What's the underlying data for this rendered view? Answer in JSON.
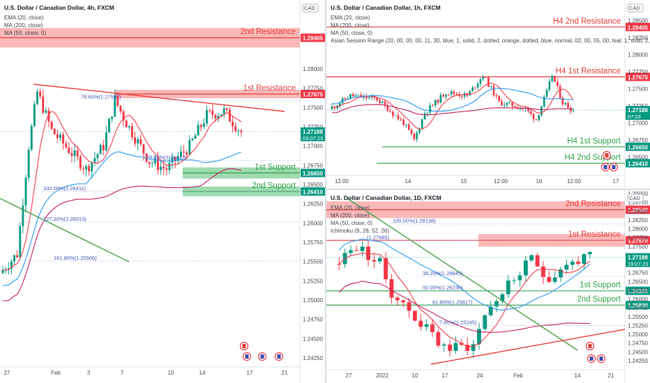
{
  "chart_data": [
    {
      "type": "candlestick",
      "title": "U.S. Dollar / Canadian Dollar, 4h, FXCM",
      "currency": "CAD",
      "indicators": [
        "EMA (20, close)",
        "MA (200, close)",
        "MA (50, close, 0)"
      ],
      "ylim": [
        1.2415,
        1.2885
      ],
      "y_ticks": [
        1.28,
        1.2775,
        1.275,
        1.2725,
        1.27,
        1.2675,
        1.265,
        1.2625,
        1.26,
        1.2575,
        1.255,
        1.2525,
        1.25,
        1.2475,
        1.245,
        1.2425
      ],
      "y_tick_labels": [
        "1.28000",
        "1.27750",
        "1.27500",
        "1.27250",
        "1.27000",
        "1.26750",
        "1.26500",
        "1.26250",
        "1.26000",
        "1.25750",
        "1.25500",
        "1.25250",
        "1.25000",
        "1.24750",
        "1.24500",
        "1.24250"
      ],
      "x_ticks": [
        "27",
        "Feb",
        "3",
        "7",
        "10",
        "14",
        "17",
        "21"
      ],
      "zones": [
        {
          "label": "2nd Resistance",
          "price": 1.28405,
          "price_label": "1.28405",
          "color": "#f23645"
        },
        {
          "label": "1st Resistance",
          "price": 1.27675,
          "price_label": "1.27675",
          "color": "#f23645"
        },
        {
          "label": "1st Support",
          "price": 1.2665,
          "price_label": "1.26650",
          "color": "#089981"
        },
        {
          "label": "2nd Support",
          "price": 1.2641,
          "price_label": "1.26410",
          "color": "#089981"
        }
      ],
      "fib_labels": [
        {
          "text": "78.60%(1.27597)",
          "price": 1.27597
        },
        {
          "text": "78.60%(1.26813)",
          "price": 1.26813
        },
        {
          "text": "100.00%(1.26411)",
          "price": 1.26411
        },
        {
          "text": "127.20%(1.26013)",
          "price": 1.26013
        },
        {
          "text": "161.80%(1.25506)",
          "price": 1.25506
        }
      ],
      "last_price": "1.27188",
      "countdown": "03:07:23"
    },
    {
      "type": "candlestick",
      "title": "U.S. Dollar / Canadian Dollar, 1h, FXCM",
      "currency": "CAD",
      "indicators": [
        "EMA (20, close)",
        "MA (200, close)",
        "MA (50, close, 0)",
        "Asian Session Range (20, 00, 00, 00, 11, 30, blue, 1, solid, 2, dotted, orange, dotted, blue, normal, 02, 00, 05, 00, teal, 1, solid, 2, dotted, t"
      ],
      "ylim": [
        1.2625,
        1.2875
      ],
      "y_ticks": [
        1.285,
        1.2825,
        1.28,
        1.2775,
        1.275,
        1.2725,
        1.27,
        1.2675,
        1.265
      ],
      "y_tick_labels": [
        "1.28500",
        "1.28250",
        "1.28000",
        "1.27750",
        "1.27500",
        "1.27250",
        "1.27000",
        "1.26750",
        "1.26500"
      ],
      "x_ticks": [
        "12:00",
        "14",
        "15",
        "12:00",
        "16",
        "12:00",
        "17"
      ],
      "zones": [
        {
          "label": "H4 2nd Resistance",
          "price": 1.28405,
          "price_label": "1.28405",
          "color": "#f23645"
        },
        {
          "label": "H4 1st Resistance",
          "price": 1.27675,
          "price_label": "1.27675",
          "color": "#f23645"
        },
        {
          "label": "H4 1st Support",
          "price": 1.2665,
          "price_label": "1.26650",
          "color": "#089981"
        },
        {
          "label": "H4 2nd Support",
          "price": 1.2641,
          "price_label": "1.26410",
          "color": "#089981"
        }
      ],
      "last_price": "1.27188",
      "countdown": "07:23"
    },
    {
      "type": "candlestick",
      "title": "U.S. Dollar / Canadian Dollar, 1D, FXCM",
      "currency": "CAD",
      "indicators": [
        "EMA (20, close)",
        "MA (200, close)",
        "MA (50, close, 0)",
        "Ichimoku (9, 26, 52, 26)"
      ],
      "ylim": [
        1.2415,
        1.29
      ],
      "y_ticks": [
        1.29,
        1.2875,
        1.285,
        1.2825,
        1.28,
        1.2775,
        1.275,
        1.2725,
        1.27,
        1.2675,
        1.265,
        1.2625,
        1.26,
        1.2575,
        1.255,
        1.2525,
        1.25,
        1.2475,
        1.245,
        1.2425
      ],
      "y_tick_labels": [
        "1.29000",
        "1.28750",
        "1.28500",
        "1.28250",
        "1.28000",
        "1.27750",
        "1.27500",
        "1.27250",
        "1.27000",
        "1.26750",
        "1.26500",
        "1.26250",
        "1.26000",
        "1.25750",
        "1.25500",
        "1.25250",
        "1.25000",
        "1.24750",
        "1.24500",
        "1.24250"
      ],
      "x_ticks": [
        "27",
        "2022",
        "10",
        "17",
        "24",
        "Feb",
        "14",
        "21"
      ],
      "zones": [
        {
          "label": "2nd Resistance",
          "price": 1.2854,
          "price_label": "1.28540",
          "color": "#f23645"
        },
        {
          "label": "1st Resistance",
          "price": 1.2767,
          "price_label": "1.27670",
          "color": "#f23645"
        },
        {
          "label": "1st Support",
          "price": 1.26235,
          "price_label": "1.26235",
          "color": "#089981"
        },
        {
          "label": "2nd Support",
          "price": 1.2583,
          "price_label": "1.25830",
          "color": "#089981"
        }
      ],
      "fib_labels": [
        {
          "text": "100.00%(1.28138)",
          "price": 1.28138
        },
        {
          "text": "(1.27665)",
          "price": 1.27665
        },
        {
          "text": "38.20%(1.26645)",
          "price": 1.26645
        },
        {
          "text": "50.00%(1.26236)",
          "price": 1.26236
        },
        {
          "text": "61.80%(1.25827)",
          "price": 1.25827
        },
        {
          "text": "7.60%(1.25245)",
          "price": 1.25245
        }
      ],
      "last_price": "1.27188",
      "countdown": "19:07:23"
    }
  ],
  "colors": {
    "bull": "#089981",
    "bear": "#f23645",
    "ema": "#f23645",
    "ma200": "#c2185b",
    "ma50": "#2196f3",
    "resistance_fill": "#f8a0a0",
    "support_fill": "#7fcf96",
    "support_line": "#2e9e44",
    "resistance_line": "#e53935",
    "trend_red": "#e53935",
    "trend_green": "#43a047"
  },
  "icons": [
    "canada-flag-icon",
    "us-flag-icon"
  ]
}
